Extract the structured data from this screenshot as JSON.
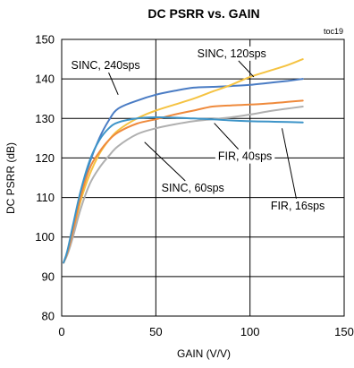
{
  "chart_data": {
    "type": "line",
    "title": "DC PSRR vs. GAIN",
    "tag": "toc19",
    "xlabel": "GAIN (V/V)",
    "ylabel": "DC PSRR (dB)",
    "xlim": [
      0,
      150
    ],
    "ylim": [
      80,
      150
    ],
    "xticks": [
      0,
      50,
      100,
      150
    ],
    "yticks": [
      80,
      90,
      100,
      110,
      120,
      130,
      140,
      150
    ],
    "grid": true,
    "series": [
      {
        "name": "SINC, 240sps",
        "color": "#4a7cc4",
        "x": [
          1,
          3,
          6,
          10,
          15,
          20,
          25,
          30,
          40,
          50,
          60,
          70,
          80,
          90,
          100,
          110,
          120,
          128
        ],
        "y": [
          93.5,
          96,
          102,
          111,
          119,
          125,
          129.5,
          132.5,
          134.5,
          136,
          137,
          137.8,
          138,
          138.2,
          138.5,
          139,
          139.5,
          140
        ]
      },
      {
        "name": "SINC, 120sps",
        "color": "#f5c342",
        "x": [
          1,
          3,
          6,
          10,
          15,
          20,
          25,
          30,
          40,
          50,
          60,
          70,
          80,
          90,
          100,
          110,
          120,
          128
        ],
        "y": [
          93.5,
          96,
          101,
          109,
          116,
          121,
          124.5,
          127,
          130,
          132,
          133.5,
          135,
          136.8,
          138.5,
          140.5,
          142,
          143.5,
          145
        ]
      },
      {
        "name": "SINC, 60sps",
        "color": "#b0b0b0",
        "x": [
          1,
          3,
          6,
          10,
          15,
          20,
          25,
          30,
          40,
          50,
          60,
          70,
          80,
          90,
          100,
          110,
          120,
          128
        ],
        "y": [
          93.5,
          95.5,
          100,
          107,
          113.5,
          117.5,
          120.5,
          123,
          126,
          127.5,
          128.5,
          129.3,
          129.8,
          130.3,
          131,
          131.8,
          132.5,
          133
        ]
      },
      {
        "name": "FIR, 40sps",
        "color": "#ef8a3c",
        "x": [
          1,
          3,
          6,
          10,
          15,
          20,
          25,
          30,
          40,
          50,
          60,
          70,
          80,
          90,
          100,
          110,
          120,
          128
        ],
        "y": [
          93.5,
          96,
          101.5,
          110,
          117.5,
          121.5,
          124.5,
          126.5,
          128.7,
          129.8,
          131,
          132,
          133,
          133.3,
          133.5,
          133.8,
          134.2,
          134.5
        ]
      },
      {
        "name": "FIR, 16sps",
        "color": "#3d94c8",
        "x": [
          1,
          3,
          6,
          10,
          15,
          20,
          25,
          30,
          40,
          50,
          60,
          70,
          80,
          90,
          100,
          110,
          120,
          128
        ],
        "y": [
          93.5,
          96.5,
          103,
          111.5,
          119.5,
          124.5,
          127.5,
          129,
          130,
          130.3,
          130.2,
          130,
          129.8,
          129.5,
          129.3,
          129.2,
          129.1,
          129
        ]
      }
    ],
    "annotations": [
      {
        "text": "SINC, 240sps",
        "tx": 5,
        "ty": 142.5,
        "x2": 30,
        "y2": 136
      },
      {
        "text": "SINC, 120sps",
        "tx": 72,
        "ty": 145.5,
        "x2": 102,
        "y2": 140.5
      },
      {
        "text": "FIR, 40sps",
        "tx": 83,
        "ty": 119.5,
        "x2": 81,
        "y2": 128.8
      },
      {
        "text": "SINC, 60sps",
        "tx": 53,
        "ty": 111.5,
        "x2": 44,
        "y2": 124
      },
      {
        "text": "FIR, 16sps",
        "tx": 111,
        "ty": 107,
        "x2": 117,
        "y2": 127.5
      }
    ]
  }
}
